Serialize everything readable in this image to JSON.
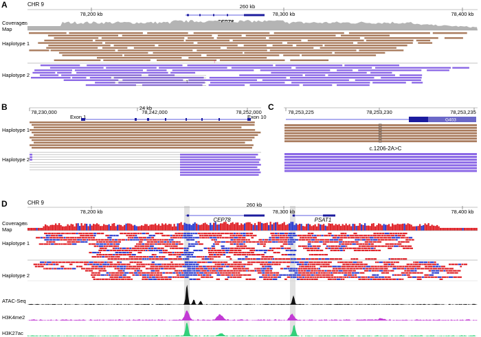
{
  "colors": {
    "hap1": "#a87a5c",
    "hap2": "#8b68e6",
    "gene": "#2a2ad6",
    "coverage_gray": "#b4b4b4",
    "meth_red": "#e0242a",
    "meth_blue": "#2f3fcf",
    "atac": "#111111",
    "h3k4me2": "#c23bd4",
    "h3k27ac": "#34d07a",
    "highlight": "#e2e2e2"
  },
  "panelA": {
    "letter": "A",
    "chr": "CHR 9",
    "scale": "260 kb",
    "ticks": [
      "78,200 kb",
      "78,300 kb",
      "78,400 kb"
    ],
    "gene": "CEP78",
    "coverage_label1": "Coverage",
    "coverage_label2": "Map",
    "coverage_max": "35",
    "hap1_label": "Haplotype 1",
    "hap2_label": "Haplotype 2"
  },
  "panelB": {
    "letter": "B",
    "scale": "24 kb",
    "ticks": [
      "78,230,000",
      "78,242,000",
      "78,252,000"
    ],
    "exon_start": "Exon 1",
    "exon_end": "Exon 10",
    "hap1_label": "Haplotype 1",
    "hap2_label": "Haplotype 2"
  },
  "panelC": {
    "letter": "C",
    "ticks": [
      "78,253,225",
      "78,253,230",
      "78,253,235"
    ],
    "variant": "c.1206-2A>C",
    "feature": "G403"
  },
  "panelD": {
    "letter": "D",
    "chr": "CHR 9",
    "scale": "260 kb",
    "ticks": [
      "78,200 kb",
      "78,300 kb",
      "78,400 kb"
    ],
    "gene1": "CEP78",
    "gene2": "PSAT1",
    "coverage_label1": "Coverage",
    "coverage_label2": "Map",
    "coverage_max": "35",
    "hap1_label": "Haplotype 1",
    "hap2_label": "Haplotype 2",
    "track1": "ATAC-Seq",
    "track2": "H3K4me2",
    "track3": "H3K27ac"
  }
}
